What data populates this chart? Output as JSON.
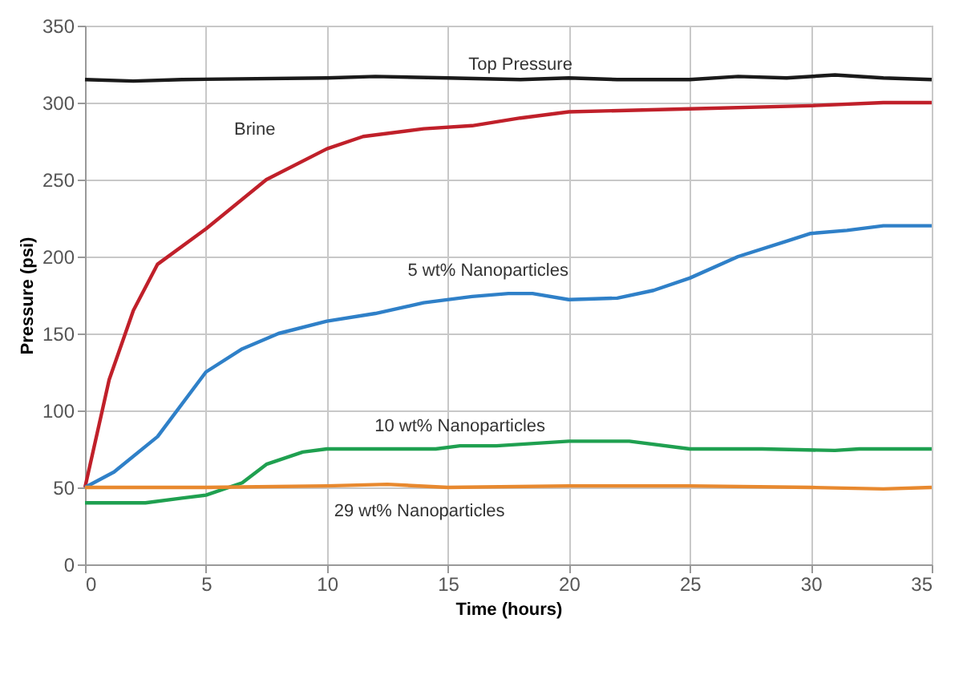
{
  "chart_data": {
    "type": "line",
    "xlabel": "Time (hours)",
    "ylabel": "Pressure (psi)",
    "xlim": [
      0,
      35
    ],
    "xticks": [
      0,
      5,
      10,
      15,
      20,
      25,
      30,
      35
    ],
    "ylim": [
      0,
      350
    ],
    "yticks": [
      0,
      50,
      100,
      150,
      200,
      250,
      300,
      350
    ],
    "grid": true,
    "legend": false,
    "marker": "none",
    "line_style": "solid",
    "series": [
      {
        "name": "Top Pressure",
        "color": "#1a1a1a",
        "x": [
          0,
          2,
          4,
          10,
          12,
          15,
          18,
          20,
          22,
          25,
          27,
          29,
          31,
          33,
          35
        ],
        "values": [
          315,
          314,
          315,
          316,
          317,
          316,
          315,
          316,
          315,
          315,
          317,
          316,
          318,
          316,
          315
        ]
      },
      {
        "name": "Brine",
        "color": "#c0202a",
        "x": [
          0,
          1,
          2,
          3,
          5,
          7.5,
          10,
          11.5,
          14,
          16,
          18,
          20,
          25,
          30,
          33,
          35
        ],
        "values": [
          50,
          120,
          165,
          195,
          218,
          250,
          270,
          278,
          283,
          285,
          290,
          294,
          296,
          298,
          300,
          300
        ]
      },
      {
        "name": "5 wt% Nanoparticles",
        "color": "#2f80c8",
        "x": [
          0,
          1.2,
          3,
          5,
          6.5,
          8,
          10,
          12,
          14,
          16,
          17.5,
          18.5,
          20,
          22,
          23.5,
          25,
          27,
          29,
          30,
          31.5,
          33,
          35
        ],
        "values": [
          50,
          60,
          83,
          125,
          140,
          150,
          158,
          163,
          170,
          174,
          176,
          176,
          172,
          173,
          178,
          186,
          200,
          210,
          215,
          217,
          220,
          220
        ]
      },
      {
        "name": "10 wt% Nanoparticles",
        "color": "#1fa050",
        "x": [
          0,
          2.5,
          4,
          5,
          6.5,
          7.5,
          9,
          10,
          13,
          14.5,
          15.5,
          17,
          20,
          22.5,
          25,
          28,
          31,
          32,
          35
        ],
        "values": [
          40,
          40,
          43,
          45,
          53,
          65,
          73,
          75,
          75,
          75,
          77,
          77,
          80,
          80,
          75,
          75,
          74,
          75,
          75
        ]
      },
      {
        "name": "29 wt% Nanoparticles",
        "color": "#e8892f",
        "x": [
          0,
          5,
          10,
          12.5,
          15,
          20,
          25,
          30,
          33,
          35
        ],
        "values": [
          50,
          50,
          51,
          52,
          50,
          51,
          51,
          50,
          49,
          50
        ]
      }
    ]
  }
}
